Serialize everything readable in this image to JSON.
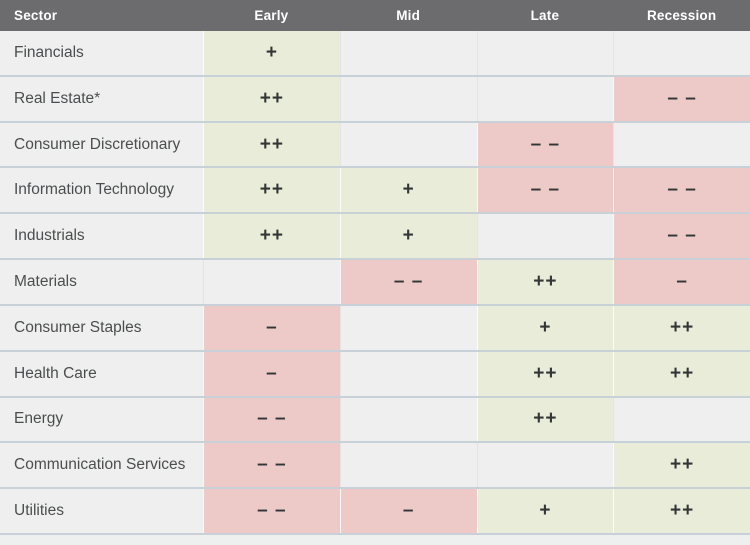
{
  "colors": {
    "header_bg": "#6c6c6f",
    "header_text": "#ffffff",
    "row_bg": "#efefef",
    "positive_bg": "#e9ecd8",
    "negative_bg": "#edcac7",
    "row_separator": "#c7d1d7",
    "symbol_text": "#333637",
    "sector_text": "#4b4d4e",
    "page_bg": "#eef0f0"
  },
  "table": {
    "columns": [
      {
        "label": "Sector"
      },
      {
        "label": "Early"
      },
      {
        "label": "Mid"
      },
      {
        "label": "Late"
      },
      {
        "label": "Recession"
      }
    ],
    "rows": [
      {
        "sector": "Financials",
        "cells": [
          {
            "value": "+",
            "tone": "positive"
          },
          {
            "value": "",
            "tone": "none"
          },
          {
            "value": "",
            "tone": "none"
          },
          {
            "value": "",
            "tone": "none"
          }
        ]
      },
      {
        "sector": "Real Estate*",
        "cells": [
          {
            "value": "++",
            "tone": "positive"
          },
          {
            "value": "",
            "tone": "none"
          },
          {
            "value": "",
            "tone": "none"
          },
          {
            "value": "– –",
            "tone": "negative"
          }
        ]
      },
      {
        "sector": "Consumer Discretionary",
        "cells": [
          {
            "value": "++",
            "tone": "positive"
          },
          {
            "value": "",
            "tone": "none"
          },
          {
            "value": "– –",
            "tone": "negative"
          },
          {
            "value": "",
            "tone": "none"
          }
        ]
      },
      {
        "sector": "Information Technology",
        "cells": [
          {
            "value": "++",
            "tone": "positive"
          },
          {
            "value": "+",
            "tone": "positive"
          },
          {
            "value": "– –",
            "tone": "negative"
          },
          {
            "value": "– –",
            "tone": "negative"
          }
        ]
      },
      {
        "sector": "Industrials",
        "cells": [
          {
            "value": "++",
            "tone": "positive"
          },
          {
            "value": "+",
            "tone": "positive"
          },
          {
            "value": "",
            "tone": "none"
          },
          {
            "value": "– –",
            "tone": "negative"
          }
        ]
      },
      {
        "sector": "Materials",
        "cells": [
          {
            "value": "",
            "tone": "none"
          },
          {
            "value": "– –",
            "tone": "negative"
          },
          {
            "value": "++",
            "tone": "positive"
          },
          {
            "value": "–",
            "tone": "negative"
          }
        ]
      },
      {
        "sector": "Consumer Staples",
        "cells": [
          {
            "value": "–",
            "tone": "negative"
          },
          {
            "value": "",
            "tone": "none"
          },
          {
            "value": "+",
            "tone": "positive"
          },
          {
            "value": "++",
            "tone": "positive"
          }
        ]
      },
      {
        "sector": "Health Care",
        "cells": [
          {
            "value": "–",
            "tone": "negative"
          },
          {
            "value": "",
            "tone": "none"
          },
          {
            "value": "++",
            "tone": "positive"
          },
          {
            "value": "++",
            "tone": "positive"
          }
        ]
      },
      {
        "sector": "Energy",
        "cells": [
          {
            "value": "– –",
            "tone": "negative"
          },
          {
            "value": "",
            "tone": "none"
          },
          {
            "value": "++",
            "tone": "positive"
          },
          {
            "value": "",
            "tone": "none"
          }
        ]
      },
      {
        "sector": "Communication Services",
        "cells": [
          {
            "value": "– –",
            "tone": "negative"
          },
          {
            "value": "",
            "tone": "none"
          },
          {
            "value": "",
            "tone": "none"
          },
          {
            "value": "++",
            "tone": "positive"
          }
        ]
      },
      {
        "sector": "Utilities",
        "cells": [
          {
            "value": "– –",
            "tone": "negative"
          },
          {
            "value": "–",
            "tone": "negative"
          },
          {
            "value": "+",
            "tone": "positive"
          },
          {
            "value": "++",
            "tone": "positive"
          }
        ]
      }
    ]
  },
  "chart_data": {
    "type": "heatmap",
    "title": "",
    "columns": [
      "Early",
      "Mid",
      "Late",
      "Recession"
    ],
    "rows": [
      "Financials",
      "Real Estate*",
      "Consumer Discretionary",
      "Information Technology",
      "Industrials",
      "Materials",
      "Consumer Staples",
      "Health Care",
      "Energy",
      "Communication Services",
      "Utilities"
    ],
    "values": [
      [
        "+",
        "",
        "",
        ""
      ],
      [
        "++",
        "",
        "",
        "--"
      ],
      [
        "++",
        "",
        "--",
        ""
      ],
      [
        "++",
        "+",
        "--",
        "--"
      ],
      [
        "++",
        "+",
        "",
        "--"
      ],
      [
        "",
        "--",
        "++",
        "-"
      ],
      [
        "-",
        "",
        "+",
        "++"
      ],
      [
        "-",
        "",
        "++",
        "++"
      ],
      [
        "--",
        "",
        "++",
        ""
      ],
      [
        "--",
        "",
        "",
        "++"
      ],
      [
        "--",
        "-",
        "+",
        "++"
      ]
    ],
    "legend_position": "none",
    "grid": true
  }
}
